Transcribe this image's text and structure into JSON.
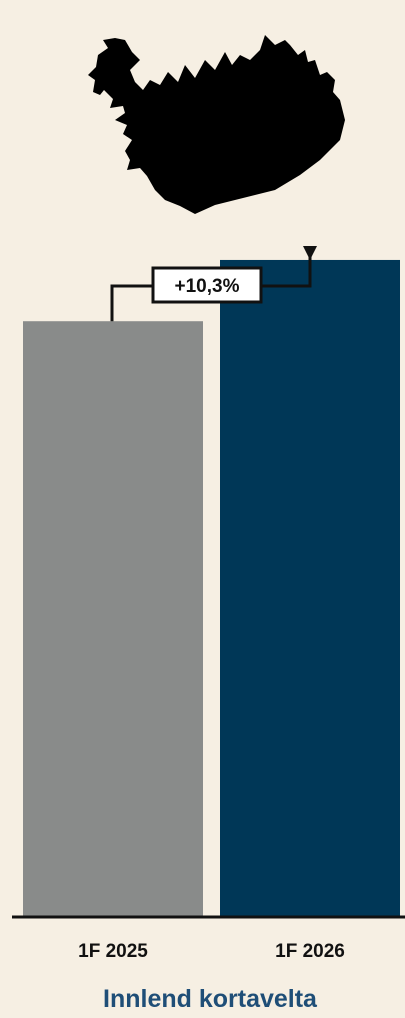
{
  "chart_data": {
    "type": "bar",
    "categories": [
      "1F 2025",
      "1F 2026"
    ],
    "values": [
      100,
      110.3
    ],
    "change_label": "+10,3%",
    "title": "Innlend kortavelta",
    "ylim": [
      0,
      115
    ],
    "grid": false,
    "legend": "none",
    "colors": [
      "#898b8a",
      "#003757"
    ],
    "title_color": "#1f4e77",
    "icon": "iceland-map-icon"
  }
}
